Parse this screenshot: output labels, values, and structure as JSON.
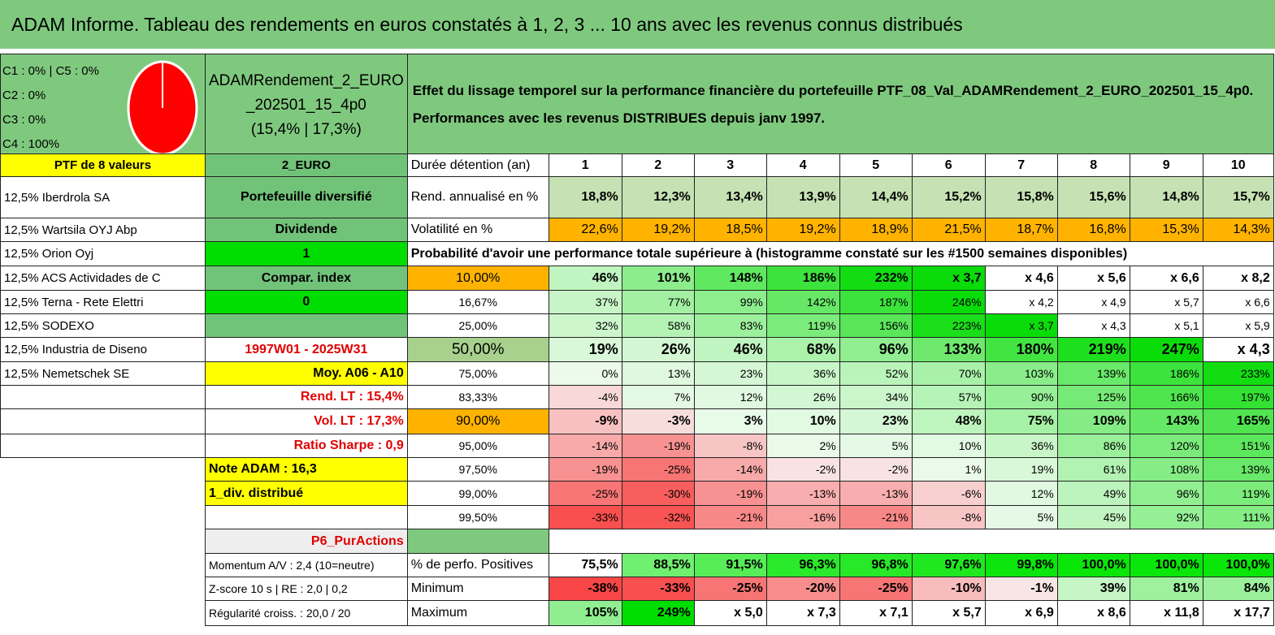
{
  "title": "ADAM Informe. Tableau des rendements en euros constatés à 1, 2, 3 ... 10 ans avec les revenus connus distribués",
  "allocation": [
    "C1 : 0% | C5 : 0%",
    "C2 : 0%",
    "C3 : 0%",
    "C4 : 100%"
  ],
  "pie_color": "#ff0000",
  "portfolio": {
    "name_line1": "ADAMRendement_2_EURO",
    "name_line2": "_202501_15_4p0",
    "name_line3": "(15,4% | 17,3%)"
  },
  "effect_text": {
    "line1": "Effet du lissage temporel sur la performance financière du portefeuille PTF_08_Val_ADAMRendement_2_EURO_202501_15_4p0.",
    "line2": "Performances avec les revenus DISTRIBUES depuis janv 1997."
  },
  "header": {
    "ptf_count": "PTF de 8 valeurs",
    "currency": "2_EURO",
    "duration_label": "Durée détention (an)",
    "years": [
      "1",
      "2",
      "3",
      "4",
      "5",
      "6",
      "7",
      "8",
      "9",
      "10"
    ]
  },
  "holdings": [
    "12,5% Iberdrola SA",
    "12,5% Wartsila OYJ Abp",
    "12,5% Orion Oyj",
    "12,5% ACS Actividades de C",
    "12,5% Terna - Rete Elettri",
    "12,5% SODEXO",
    "12,5% Industria de Diseno",
    "12,5% Nemetschek SE"
  ],
  "info": {
    "diversified": "Portefeuille diversifié",
    "dividend": "Dividende",
    "one": "1",
    "compar": "Compar. index",
    "zero": "0",
    "period": "1997W01 - 2025W31",
    "moy": "Moy. A06 - A10",
    "rend_lt": "Rend. LT : 15,4%",
    "vol_lt": "Vol. LT : 17,3%",
    "sharpe": "Ratio Sharpe : 0,9",
    "note": "Note ADAM : 16,3",
    "div": "1_div. distribué",
    "strategy": "P6_PurActions",
    "momentum": "Momentum A/V : 2,4 (10=neutre)",
    "zscore": "Z-score 10 s | RE : 2,0 | 0,2",
    "regularite": "Régularité croiss. : 20,0 / 20"
  },
  "rend": {
    "label": "Rend. annualisé en %",
    "values": [
      "18,8%",
      "12,3%",
      "13,4%",
      "13,9%",
      "14,4%",
      "15,2%",
      "15,8%",
      "15,6%",
      "14,8%",
      "15,7%"
    ]
  },
  "vol": {
    "label": "Volatilité en %",
    "values": [
      "22,6%",
      "19,2%",
      "18,5%",
      "19,2%",
      "18,9%",
      "21,5%",
      "18,7%",
      "16,8%",
      "15,3%",
      "14,3%"
    ]
  },
  "prob_title": "Probabilité d'avoir une performance totale supérieure à (histogramme constaté sur les #1500 semaines disponibles)",
  "prob_rows": [
    {
      "p": "10,00%",
      "v": [
        "46%",
        "101%",
        "148%",
        "186%",
        "232%",
        "x 3,7",
        "x 4,6",
        "x 5,6",
        "x 6,6",
        "x 8,2"
      ]
    },
    {
      "p": "16,67%",
      "v": [
        "37%",
        "77%",
        "99%",
        "142%",
        "187%",
        "246%",
        "x 4,2",
        "x 4,9",
        "x 5,7",
        "x 6,6"
      ]
    },
    {
      "p": "25,00%",
      "v": [
        "32%",
        "58%",
        "83%",
        "119%",
        "156%",
        "223%",
        "x 3,7",
        "x 4,3",
        "x 5,1",
        "x 5,9"
      ]
    },
    {
      "p": "50,00%",
      "v": [
        "19%",
        "26%",
        "46%",
        "68%",
        "96%",
        "133%",
        "180%",
        "219%",
        "247%",
        "x 4,3"
      ]
    },
    {
      "p": "75,00%",
      "v": [
        "0%",
        "13%",
        "23%",
        "36%",
        "52%",
        "70%",
        "103%",
        "139%",
        "186%",
        "233%"
      ]
    },
    {
      "p": "83,33%",
      "v": [
        "-4%",
        "7%",
        "12%",
        "26%",
        "34%",
        "57%",
        "90%",
        "125%",
        "166%",
        "197%"
      ]
    },
    {
      "p": "90,00%",
      "v": [
        "-9%",
        "-3%",
        "3%",
        "10%",
        "23%",
        "48%",
        "75%",
        "109%",
        "143%",
        "165%"
      ]
    },
    {
      "p": "95,00%",
      "v": [
        "-14%",
        "-19%",
        "-8%",
        "2%",
        "5%",
        "10%",
        "36%",
        "86%",
        "120%",
        "151%"
      ]
    },
    {
      "p": "97,50%",
      "v": [
        "-19%",
        "-25%",
        "-14%",
        "-2%",
        "-2%",
        "1%",
        "19%",
        "61%",
        "108%",
        "139%"
      ]
    },
    {
      "p": "99,00%",
      "v": [
        "-25%",
        "-30%",
        "-19%",
        "-13%",
        "-13%",
        "-6%",
        "12%",
        "49%",
        "96%",
        "119%"
      ]
    },
    {
      "p": "99,50%",
      "v": [
        "-33%",
        "-32%",
        "-21%",
        "-16%",
        "-21%",
        "-8%",
        "5%",
        "45%",
        "92%",
        "111%"
      ]
    }
  ],
  "positives": {
    "label": "% de perfo. Positives",
    "values": [
      "75,5%",
      "88,5%",
      "91,5%",
      "96,3%",
      "96,8%",
      "97,6%",
      "99,8%",
      "100,0%",
      "100,0%",
      "100,0%"
    ]
  },
  "minimum": {
    "label": "Minimum",
    "values": [
      "-38%",
      "-33%",
      "-25%",
      "-20%",
      "-25%",
      "-10%",
      "-1%",
      "39%",
      "81%",
      "84%"
    ]
  },
  "maximum": {
    "label": "Maximum",
    "values": [
      "105%",
      "249%",
      "x 5,0",
      "x 7,3",
      "x 7,1",
      "x 5,7",
      "x 6,9",
      "x 8,6",
      "x 11,8",
      "x 17,7"
    ]
  },
  "colors": {
    "header_green": "#7fc97f",
    "yellow": "#ffff00",
    "orange": "#ffb300",
    "bright_green": "#00dd00"
  }
}
